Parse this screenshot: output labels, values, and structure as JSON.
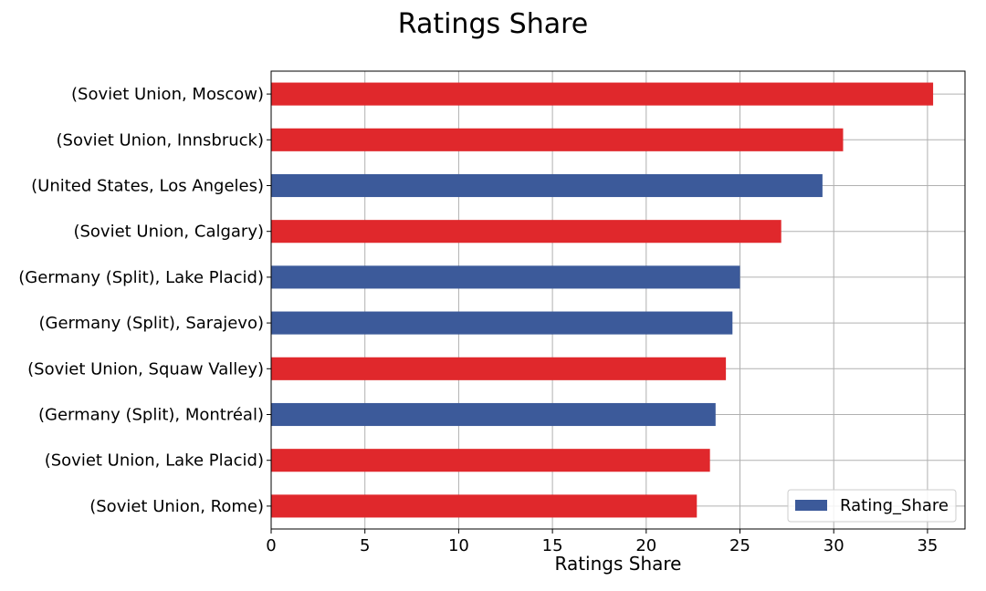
{
  "chart_data": {
    "type": "bar",
    "orientation": "horizontal",
    "title": "Ratings Share",
    "xlabel": "Ratings Share",
    "ylabel": "",
    "xlim": [
      0,
      37
    ],
    "xticks": [
      "0",
      "5",
      "10",
      "15",
      "20",
      "25",
      "30",
      "35"
    ],
    "grid": true,
    "legend": {
      "position": "bottom-right",
      "label": "Rating_Share"
    },
    "categories": [
      "(Soviet Union, Moscow)",
      "(Soviet Union, Innsbruck)",
      "(United States, Los Angeles)",
      "(Soviet Union, Calgary)",
      "(Germany (Split), Lake Placid)",
      "(Germany (Split), Sarajevo)",
      "(Soviet Union, Squaw Valley)",
      "(Germany (Split), Montréal)",
      "(Soviet Union, Lake Placid)",
      "(Soviet Union, Rome)"
    ],
    "values": [
      35.3,
      30.5,
      29.4,
      27.2,
      25.0,
      24.6,
      24.25,
      23.7,
      23.4,
      22.7
    ],
    "bar_colors": [
      "#e0282c",
      "#e0282c",
      "#3c5a9a",
      "#e0282c",
      "#3c5a9a",
      "#3c5a9a",
      "#e0282c",
      "#3c5a9a",
      "#e0282c",
      "#e0282c"
    ]
  },
  "colors": {
    "red": "#e0282c",
    "blue": "#3c5a9a"
  }
}
